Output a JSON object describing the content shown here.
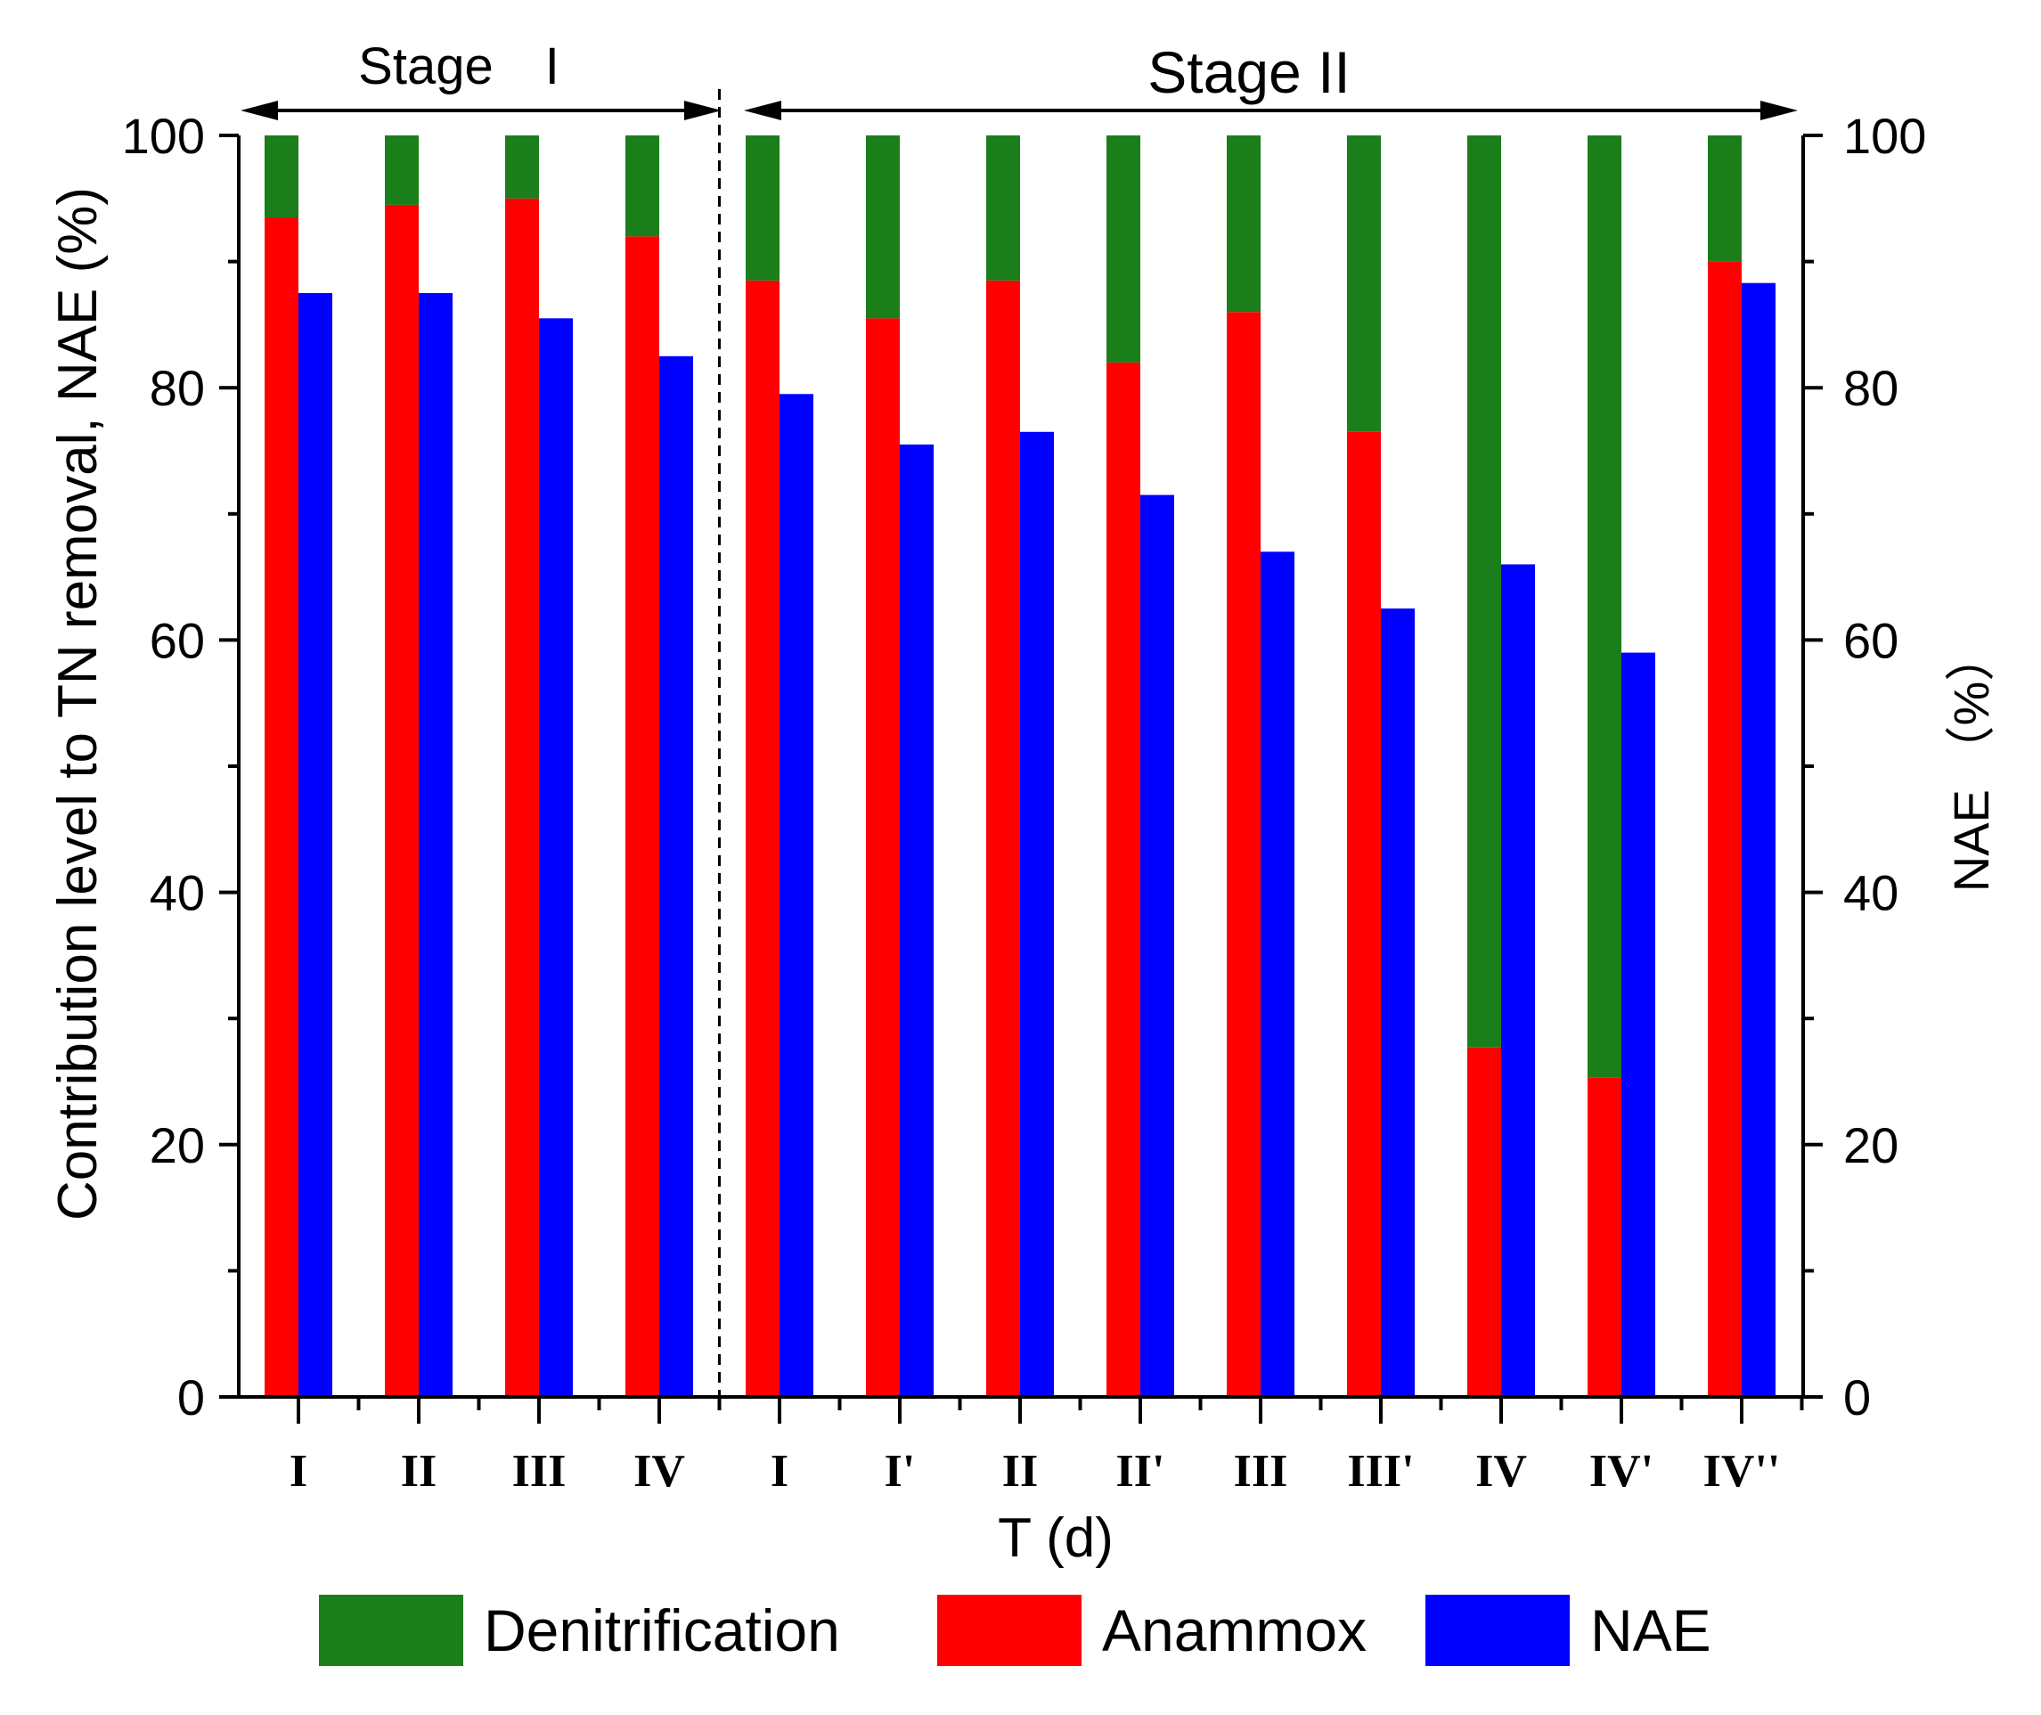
{
  "chart_data": {
    "type": "bar",
    "title": "",
    "xlabel": "T (d)",
    "ylabel": "Contribution level to TN removal, NAE (%)",
    "ylabel_right": "NAE （%）",
    "ylim": [
      0,
      100
    ],
    "ylim_right": [
      0,
      100
    ],
    "yticks": [
      0,
      20,
      40,
      60,
      80,
      100
    ],
    "grid": false,
    "stages": [
      {
        "label": "Stage　I",
        "first_index": 0,
        "last_index": 3
      },
      {
        "label": "Stage  II",
        "first_index": 4,
        "last_index": 12
      }
    ],
    "categories": [
      "I",
      "II",
      "III",
      "IV",
      "I",
      "I'",
      "II",
      "II'",
      "III",
      "III'",
      "IV",
      "IV'",
      "IV''"
    ],
    "series": [
      {
        "name": "Denitrification",
        "color": "#1a7f1a",
        "values": [
          6.5,
          5.5,
          5.0,
          8.0,
          11.5,
          14.5,
          11.5,
          18.0,
          14.0,
          23.5,
          72.3,
          74.7,
          10.0
        ]
      },
      {
        "name": "Anammox",
        "color": "#ff0000",
        "values": [
          93.5,
          94.5,
          95.0,
          92.0,
          88.5,
          85.5,
          88.5,
          82.0,
          86.0,
          76.5,
          27.7,
          25.3,
          90.0
        ]
      },
      {
        "name": "NAE",
        "color": "#0000ff",
        "values": [
          87.5,
          87.5,
          85.5,
          82.5,
          79.5,
          75.5,
          76.5,
          71.5,
          67.0,
          62.5,
          66.0,
          59.0,
          88.3
        ]
      }
    ],
    "stacked": [
      "Denitrification",
      "Anammox"
    ],
    "legend_position": "bottom"
  }
}
